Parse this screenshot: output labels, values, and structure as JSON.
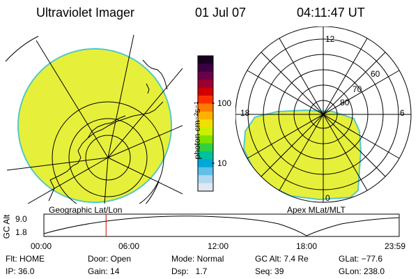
{
  "header": {
    "title": "Ultraviolet Imager",
    "date": "01 Jul 07",
    "time": "04:11:47 UT"
  },
  "colors": {
    "aurora_fill": "#e6f03a",
    "aurora_edge": "#55c8c8",
    "grid": "#000000"
  },
  "colorbar": {
    "unit_label": "photon cm⁻²s⁻¹",
    "tick_labels": [
      "100",
      "10"
    ],
    "colors_top_to_bottom": [
      "#1a0020",
      "#3a0040",
      "#6a0048",
      "#9a0030",
      "#d00000",
      "#ff3000",
      "#ff7a00",
      "#ffb000",
      "#f0e000",
      "#c8f000",
      "#80e000",
      "#30d040",
      "#00c0a0",
      "#00a8d8",
      "#60c0e8",
      "#b0d8f0",
      "#e0e8f0"
    ]
  },
  "left_map": {
    "label": "Geographic Lat/Lon",
    "icon": "continents-map"
  },
  "right_map": {
    "label": "Apex MLat/MLT",
    "lat_labels": [
      "80",
      "70",
      "60"
    ],
    "mlt_labels": [
      "12",
      "18",
      "6",
      "0"
    ]
  },
  "timeline": {
    "axis_label": "GC Alt",
    "y_ticks": [
      "9.0",
      "1.8"
    ],
    "x_ticks": [
      "00:00",
      "06:00",
      "12:00",
      "18:00",
      "23:59"
    ],
    "current_time_hours": 4.2,
    "marker_color": "#cc0000"
  },
  "info": {
    "row1": {
      "flt": "Flt: HOME",
      "door": "Door: Open",
      "mode": "Mode: Normal",
      "gcalt": "GC Alt: 7.4 Re",
      "glat": "GLat: −77.6"
    },
    "row2": {
      "ip": "IP: 36.0",
      "gain": "Gain: 14",
      "dsp": "Dsp:   1.7",
      "seq": "Seq: 39",
      "glon": "GLon: 238.0"
    }
  }
}
